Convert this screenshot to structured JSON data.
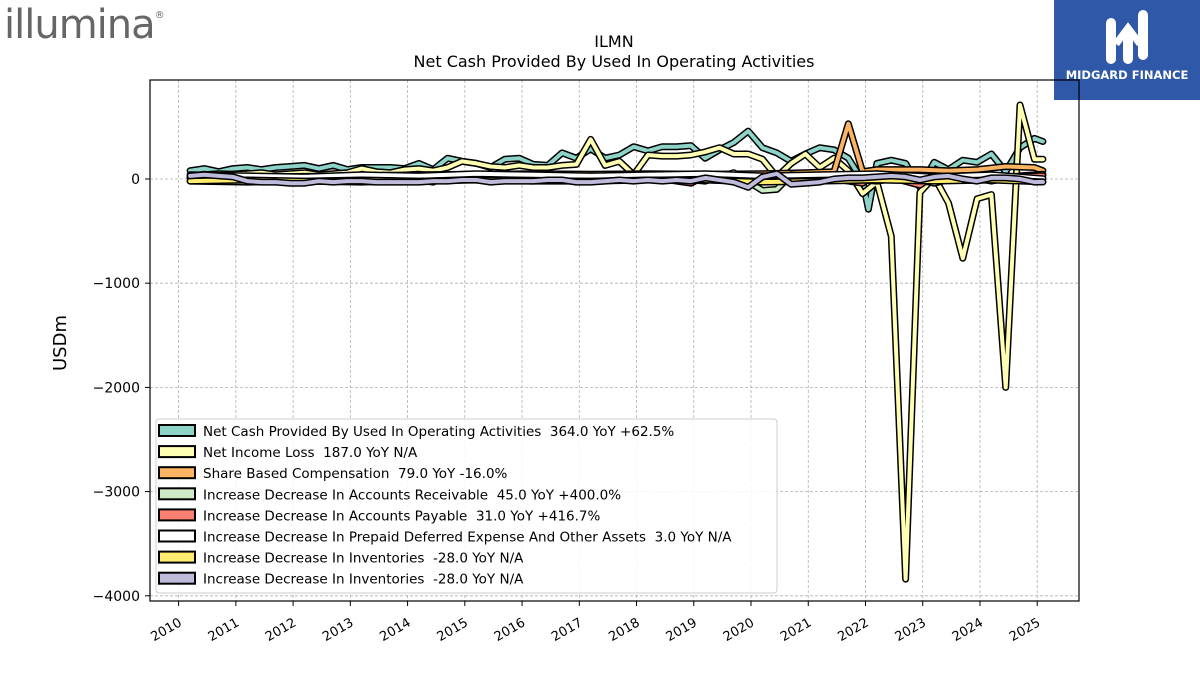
{
  "logos": {
    "left_brand": "illumina",
    "right_brand": "MIDGARD FINANCE"
  },
  "chart_data": {
    "type": "line",
    "title": "ILMN",
    "subtitle": "Net Cash Provided By Used In Operating Activities",
    "ylabel": "USDm",
    "xlabel": "",
    "ylim": [
      -4050,
      950
    ],
    "xlim": [
      2009.5,
      2025.73
    ],
    "yticks": [
      0,
      -1000,
      -2000,
      -3000,
      -4000
    ],
    "ytick_labels": [
      "0",
      "−1000",
      "−2000",
      "−3000",
      "−4000"
    ],
    "xticks": [
      2010,
      2011,
      2012,
      2013,
      2014,
      2015,
      2016,
      2017,
      2018,
      2019,
      2020,
      2021,
      2022,
      2023,
      2024,
      2025
    ],
    "grid": true,
    "legend_position": "lower-left",
    "series": [
      {
        "name": "Net Cash Provided By Used In Operating Activities",
        "legend": "Net Cash Provided By Used In Operating Activities  364.0 YoY +62.5%",
        "color": "#8dd3c7",
        "points": [
          [
            2010.2,
            80
          ],
          [
            2010.45,
            100
          ],
          [
            2010.7,
            70
          ],
          [
            2010.95,
            100
          ],
          [
            2011.2,
            110
          ],
          [
            2011.45,
            90
          ],
          [
            2011.7,
            110
          ],
          [
            2011.95,
            120
          ],
          [
            2012.2,
            130
          ],
          [
            2012.45,
            100
          ],
          [
            2012.7,
            130
          ],
          [
            2012.95,
            90
          ],
          [
            2013.2,
            110
          ],
          [
            2013.45,
            110
          ],
          [
            2013.7,
            110
          ],
          [
            2013.95,
            100
          ],
          [
            2014.2,
            150
          ],
          [
            2014.45,
            90
          ],
          [
            2014.7,
            200
          ],
          [
            2014.95,
            170
          ],
          [
            2015.2,
            150
          ],
          [
            2015.45,
            110
          ],
          [
            2015.7,
            190
          ],
          [
            2015.95,
            200
          ],
          [
            2016.2,
            140
          ],
          [
            2016.45,
            130
          ],
          [
            2016.7,
            250
          ],
          [
            2016.95,
            200
          ],
          [
            2017.2,
            290
          ],
          [
            2017.45,
            200
          ],
          [
            2017.7,
            230
          ],
          [
            2017.95,
            310
          ],
          [
            2018.2,
            270
          ],
          [
            2018.45,
            310
          ],
          [
            2018.7,
            310
          ],
          [
            2018.95,
            320
          ],
          [
            2019.2,
            200
          ],
          [
            2019.45,
            280
          ],
          [
            2019.7,
            350
          ],
          [
            2019.95,
            460
          ],
          [
            2020.2,
            300
          ],
          [
            2020.45,
            250
          ],
          [
            2020.7,
            170
          ],
          [
            2020.95,
            240
          ],
          [
            2021.2,
            300
          ],
          [
            2021.45,
            280
          ],
          [
            2021.7,
            200
          ],
          [
            2021.95,
            -20
          ],
          [
            2022.05,
            -290
          ],
          [
            2022.2,
            150
          ],
          [
            2022.45,
            180
          ],
          [
            2022.7,
            150
          ],
          [
            2022.95,
            -80
          ],
          [
            2023.2,
            160
          ],
          [
            2023.45,
            90
          ],
          [
            2023.7,
            180
          ],
          [
            2023.95,
            160
          ],
          [
            2024.2,
            240
          ],
          [
            2024.45,
            70
          ],
          [
            2024.7,
            300
          ],
          [
            2024.95,
            390
          ],
          [
            2025.1,
            360
          ]
        ]
      },
      {
        "name": "Net Income Loss",
        "legend": "Net Income Loss  187.0 YoY N/A",
        "color": "#ffffb3",
        "points": [
          [
            2010.2,
            30
          ],
          [
            2010.45,
            40
          ],
          [
            2010.7,
            50
          ],
          [
            2010.95,
            45
          ],
          [
            2011.2,
            50
          ],
          [
            2011.45,
            60
          ],
          [
            2011.7,
            40
          ],
          [
            2011.95,
            50
          ],
          [
            2012.2,
            60
          ],
          [
            2012.45,
            40
          ],
          [
            2012.7,
            50
          ],
          [
            2012.95,
            60
          ],
          [
            2013.2,
            100
          ],
          [
            2013.45,
            70
          ],
          [
            2013.7,
            60
          ],
          [
            2013.95,
            90
          ],
          [
            2014.2,
            100
          ],
          [
            2014.45,
            80
          ],
          [
            2014.7,
            110
          ],
          [
            2014.95,
            170
          ],
          [
            2015.2,
            150
          ],
          [
            2015.45,
            120
          ],
          [
            2015.7,
            110
          ],
          [
            2015.95,
            130
          ],
          [
            2016.2,
            110
          ],
          [
            2016.45,
            110
          ],
          [
            2016.7,
            130
          ],
          [
            2016.95,
            140
          ],
          [
            2017.2,
            380
          ],
          [
            2017.45,
            130
          ],
          [
            2017.7,
            170
          ],
          [
            2017.95,
            40
          ],
          [
            2018.2,
            230
          ],
          [
            2018.45,
            220
          ],
          [
            2018.7,
            220
          ],
          [
            2018.95,
            230
          ],
          [
            2019.2,
            260
          ],
          [
            2019.45,
            300
          ],
          [
            2019.7,
            240
          ],
          [
            2019.95,
            240
          ],
          [
            2020.2,
            190
          ],
          [
            2020.45,
            20
          ],
          [
            2020.7,
            150
          ],
          [
            2020.95,
            240
          ],
          [
            2021.2,
            110
          ],
          [
            2021.45,
            200
          ],
          [
            2021.7,
            80
          ],
          [
            2021.95,
            -140
          ],
          [
            2022.2,
            -30
          ],
          [
            2022.45,
            -550
          ],
          [
            2022.7,
            -3840
          ],
          [
            2022.95,
            -130
          ],
          [
            2023.2,
            20
          ],
          [
            2023.45,
            -230
          ],
          [
            2023.7,
            -760
          ],
          [
            2023.95,
            -190
          ],
          [
            2024.2,
            -150
          ],
          [
            2024.45,
            -2000
          ],
          [
            2024.7,
            710
          ],
          [
            2024.95,
            190
          ],
          [
            2025.1,
            190
          ]
        ]
      },
      {
        "name": "Share Based Compensation",
        "legend": "Share Based Compensation  79.0 YoY -16.0%",
        "color": "#fdb462",
        "points": [
          [
            2010.2,
            15
          ],
          [
            2011.2,
            20
          ],
          [
            2012.2,
            25
          ],
          [
            2013.2,
            30
          ],
          [
            2014.2,
            40
          ],
          [
            2015.2,
            45
          ],
          [
            2016.2,
            50
          ],
          [
            2017.2,
            45
          ],
          [
            2018.2,
            50
          ],
          [
            2019.2,
            45
          ],
          [
            2020.2,
            50
          ],
          [
            2020.95,
            60
          ],
          [
            2021.45,
            70
          ],
          [
            2021.7,
            530
          ],
          [
            2021.95,
            70
          ],
          [
            2022.2,
            90
          ],
          [
            2022.95,
            90
          ],
          [
            2023.45,
            80
          ],
          [
            2023.95,
            90
          ],
          [
            2024.45,
            120
          ],
          [
            2024.95,
            110
          ],
          [
            2025.1,
            80
          ]
        ]
      },
      {
        "name": "Increase Decrease In Accounts Receivable",
        "legend": "Increase Decrease In Accounts Receivable  45.0 YoY +400.0%",
        "color": "#ccebc5",
        "points": [
          [
            2010.2,
            -20
          ],
          [
            2011.2,
            -30
          ],
          [
            2012.2,
            -20
          ],
          [
            2013.2,
            -30
          ],
          [
            2014.2,
            -10
          ],
          [
            2014.45,
            -30
          ],
          [
            2014.7,
            30
          ],
          [
            2015.2,
            -10
          ],
          [
            2016.2,
            0
          ],
          [
            2017.2,
            10
          ],
          [
            2018.2,
            30
          ],
          [
            2019.2,
            -20
          ],
          [
            2019.7,
            60
          ],
          [
            2020.2,
            -110
          ],
          [
            2020.45,
            -100
          ],
          [
            2020.7,
            40
          ],
          [
            2021.2,
            20
          ],
          [
            2021.7,
            0
          ],
          [
            2022.2,
            -20
          ],
          [
            2022.7,
            20
          ],
          [
            2023.2,
            -40
          ],
          [
            2023.7,
            30
          ],
          [
            2024.2,
            -20
          ],
          [
            2024.7,
            30
          ],
          [
            2025.1,
            45
          ]
        ]
      },
      {
        "name": "Increase Decrease In Accounts Payable",
        "legend": "Increase Decrease In Accounts Payable  31.0 YoY +416.7%",
        "color": "#fb8072",
        "points": [
          [
            2010.2,
            10
          ],
          [
            2011.2,
            0
          ],
          [
            2012.2,
            10
          ],
          [
            2013.2,
            0
          ],
          [
            2014.2,
            10
          ],
          [
            2015.2,
            0
          ],
          [
            2016.2,
            10
          ],
          [
            2017.2,
            30
          ],
          [
            2018.2,
            20
          ],
          [
            2018.95,
            -40
          ],
          [
            2019.2,
            30
          ],
          [
            2020.2,
            20
          ],
          [
            2021.2,
            20
          ],
          [
            2021.95,
            -40
          ],
          [
            2022.2,
            50
          ],
          [
            2022.95,
            -60
          ],
          [
            2023.2,
            30
          ],
          [
            2023.7,
            10
          ],
          [
            2024.2,
            20
          ],
          [
            2025.1,
            31
          ]
        ]
      },
      {
        "name": "Increase Decrease In Prepaid Deferred Expense And Other Assets",
        "legend": "Increase Decrease In Prepaid Deferred Expense And Other Assets  3.0 YoY N/A",
        "color": "#ffffff",
        "points": [
          [
            2010.2,
            40
          ],
          [
            2011.2,
            30
          ],
          [
            2012.2,
            20
          ],
          [
            2013.2,
            40
          ],
          [
            2014.2,
            30
          ],
          [
            2015.2,
            50
          ],
          [
            2016.2,
            40
          ],
          [
            2017.2,
            30
          ],
          [
            2018.2,
            40
          ],
          [
            2019.2,
            50
          ],
          [
            2020.2,
            30
          ],
          [
            2021.2,
            40
          ],
          [
            2022.2,
            50
          ],
          [
            2023.2,
            20
          ],
          [
            2024.2,
            40
          ],
          [
            2025.1,
            3
          ]
        ]
      },
      {
        "name": "Increase Decrease In Inventories",
        "legend": "Increase Decrease In Inventories  -28.0 YoY N/A",
        "color": "#ffed6f",
        "points": [
          [
            2010.2,
            -20
          ],
          [
            2011.2,
            -10
          ],
          [
            2012.2,
            -20
          ],
          [
            2013.2,
            -10
          ],
          [
            2014.2,
            -20
          ],
          [
            2015.2,
            -10
          ],
          [
            2016.2,
            -20
          ],
          [
            2017.2,
            -20
          ],
          [
            2018.2,
            -10
          ],
          [
            2019.2,
            -10
          ],
          [
            2020.2,
            -30
          ],
          [
            2021.2,
            -20
          ],
          [
            2022.2,
            -10
          ],
          [
            2023.2,
            -20
          ],
          [
            2024.2,
            -10
          ],
          [
            2025.1,
            -28
          ]
        ]
      },
      {
        "name": "Increase Decrease In Inventories",
        "legend": "Increase Decrease In Inventories  -28.0 YoY N/A",
        "color": "#bebada",
        "points": [
          [
            2010.2,
            30
          ],
          [
            2010.45,
            40
          ],
          [
            2010.7,
            30
          ],
          [
            2010.95,
            20
          ],
          [
            2011.2,
            -20
          ],
          [
            2011.45,
            -30
          ],
          [
            2011.7,
            -30
          ],
          [
            2011.95,
            -40
          ],
          [
            2012.2,
            -40
          ],
          [
            2012.45,
            -20
          ],
          [
            2012.7,
            -30
          ],
          [
            2012.95,
            -20
          ],
          [
            2013.2,
            -20
          ],
          [
            2013.45,
            -30
          ],
          [
            2013.7,
            -30
          ],
          [
            2013.95,
            -30
          ],
          [
            2014.2,
            -30
          ],
          [
            2014.45,
            -20
          ],
          [
            2014.7,
            -20
          ],
          [
            2014.95,
            -10
          ],
          [
            2015.2,
            -10
          ],
          [
            2015.45,
            -30
          ],
          [
            2015.7,
            -20
          ],
          [
            2015.95,
            -20
          ],
          [
            2016.2,
            -20
          ],
          [
            2016.45,
            -10
          ],
          [
            2016.7,
            -10
          ],
          [
            2016.95,
            -30
          ],
          [
            2017.2,
            -30
          ],
          [
            2017.45,
            -20
          ],
          [
            2017.7,
            -10
          ],
          [
            2017.95,
            -20
          ],
          [
            2018.2,
            -10
          ],
          [
            2018.45,
            -20
          ],
          [
            2018.7,
            -10
          ],
          [
            2018.95,
            -20
          ],
          [
            2019.2,
            10
          ],
          [
            2019.45,
            -10
          ],
          [
            2019.7,
            -30
          ],
          [
            2019.95,
            -80
          ],
          [
            2020.2,
            20
          ],
          [
            2020.45,
            50
          ],
          [
            2020.7,
            -50
          ],
          [
            2020.95,
            -40
          ],
          [
            2021.2,
            -30
          ],
          [
            2021.45,
            0
          ],
          [
            2021.7,
            10
          ],
          [
            2021.95,
            10
          ],
          [
            2022.2,
            20
          ],
          [
            2022.45,
            30
          ],
          [
            2022.7,
            20
          ],
          [
            2022.95,
            -10
          ],
          [
            2023.2,
            20
          ],
          [
            2023.45,
            30
          ],
          [
            2023.7,
            0
          ],
          [
            2023.95,
            -20
          ],
          [
            2024.2,
            10
          ],
          [
            2024.45,
            10
          ],
          [
            2024.7,
            0
          ],
          [
            2024.95,
            -30
          ],
          [
            2025.1,
            -28
          ]
        ]
      }
    ]
  }
}
